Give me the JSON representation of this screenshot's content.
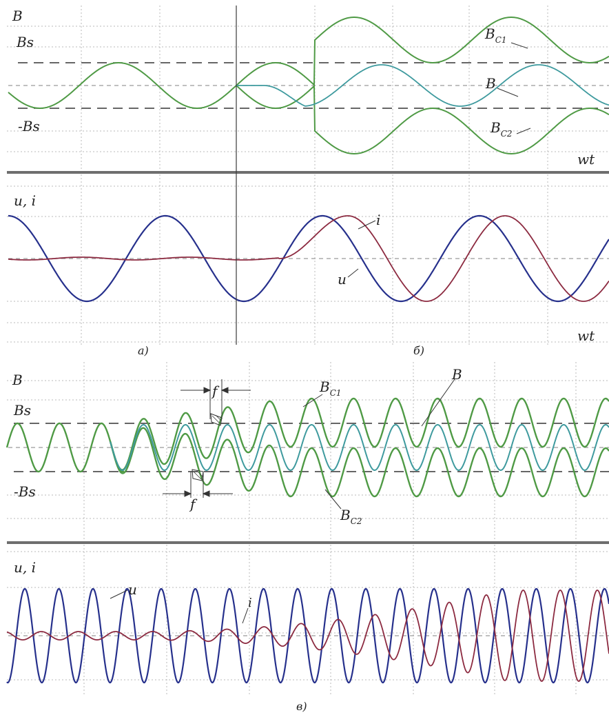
{
  "colors": {
    "flux_green": "#4f9a45",
    "flux_teal": "#3e9a9e",
    "voltage_blue": "#26308c",
    "current_red": "#8c2a40",
    "grid": "#b8b8b8",
    "separator": "#6e6e6e"
  },
  "labels": {
    "B": "B",
    "Bs": "Bs",
    "minus_Bs": "-Bs",
    "B_C": "B",
    "C1_sub": "C1",
    "C2_sub": "C2",
    "wt": "wt",
    "u_i": "u, i",
    "u": "u",
    "i": "i",
    "f": "f"
  },
  "captions": {
    "a": "a)",
    "b": "б)",
    "c": "в)"
  },
  "chart_data": [
    {
      "type": "line",
      "panel": "top",
      "ylabel": "B",
      "xlabel": "wt",
      "reference_levels": [
        "Bs",
        "0",
        "-Bs"
      ],
      "series": [
        {
          "name": "BC1",
          "color": "#4f9a45",
          "description_points": [
            [
              0,
              0
            ],
            [
              3,
              1
            ],
            [
              5,
              2
            ],
            [
              7,
              1
            ],
            [
              9,
              2
            ]
          ]
        },
        {
          "name": "B",
          "color": "#3e9a9e",
          "description_points": [
            [
              0,
              0
            ],
            [
              3,
              0
            ],
            [
              5,
              -1
            ],
            [
              7,
              1
            ],
            [
              9,
              -1
            ]
          ]
        },
        {
          "name": "BC2",
          "color": "#4f9a45",
          "description_points": [
            [
              0,
              0
            ],
            [
              3,
              -1
            ],
            [
              5,
              -3
            ],
            [
              7,
              -1
            ],
            [
              9,
              -3
            ]
          ]
        }
      ],
      "grid": true
    },
    {
      "type": "line",
      "panel": "middle",
      "ylabel": "u, i",
      "xlabel": "wt",
      "series": [
        {
          "name": "u",
          "color": "#26308c",
          "amplitude": 1
        },
        {
          "name": "i",
          "color": "#8c2a40",
          "amplitude": 1
        }
      ],
      "grid": true
    },
    {
      "type": "line",
      "panel": "lower-flux",
      "ylabel": "B",
      "reference_levels": [
        "Bs",
        "0",
        "-Bs"
      ],
      "annotation": "f",
      "series": [
        {
          "name": "BC1",
          "color": "#4f9a45"
        },
        {
          "name": "B",
          "color": "#3e9a9e"
        },
        {
          "name": "BC2",
          "color": "#4f9a45"
        }
      ],
      "grid": true
    },
    {
      "type": "line",
      "panel": "bottom",
      "ylabel": "u, i",
      "series": [
        {
          "name": "u",
          "color": "#26308c"
        },
        {
          "name": "i",
          "color": "#8c2a40"
        }
      ],
      "grid": true
    }
  ]
}
